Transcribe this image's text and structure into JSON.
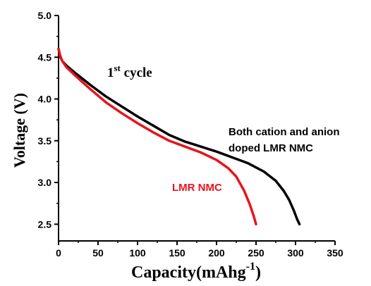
{
  "chart_data": {
    "type": "line",
    "title": "",
    "xlabel": "Capacity(mAhg",
    "xlabel_sup": "-1",
    "xlabel_close": ")",
    "ylabel": "Voltage (V)",
    "xlim": [
      0,
      350
    ],
    "ylim": [
      2.3,
      5.0
    ],
    "x_ticks": [
      0,
      50,
      100,
      150,
      200,
      250,
      300,
      350
    ],
    "y_ticks": [
      2.5,
      3.0,
      3.5,
      4.0,
      4.5,
      5.0
    ],
    "x_tick_labels": [
      "0",
      "50",
      "100",
      "150",
      "200",
      "250",
      "300",
      "350"
    ],
    "y_tick_labels": [
      "2.5",
      "3.0",
      "3.5",
      "4.0",
      "4.5",
      "5.0"
    ],
    "grid": false,
    "annotation": {
      "base": "1",
      "sup": "st",
      "rest": " cycle"
    },
    "series": [
      {
        "name": "LMR NMC",
        "color": "#e8141c",
        "x": [
          0,
          2,
          5,
          10,
          20,
          40,
          60,
          80,
          100,
          120,
          140,
          160,
          180,
          200,
          215,
          225,
          235,
          242,
          247,
          250
        ],
        "y": [
          4.6,
          4.52,
          4.45,
          4.38,
          4.29,
          4.12,
          3.96,
          3.83,
          3.71,
          3.6,
          3.5,
          3.43,
          3.36,
          3.27,
          3.17,
          3.07,
          2.9,
          2.74,
          2.6,
          2.5
        ]
      },
      {
        "name": "Both cation and anion\ndoped LMR NMC",
        "color": "#000000",
        "x": [
          0,
          2,
          5,
          10,
          20,
          40,
          60,
          80,
          100,
          120,
          140,
          160,
          180,
          200,
          220,
          240,
          260,
          275,
          285,
          292,
          298,
          302,
          305
        ],
        "y": [
          4.6,
          4.51,
          4.45,
          4.4,
          4.32,
          4.17,
          4.03,
          3.91,
          3.79,
          3.68,
          3.57,
          3.49,
          3.43,
          3.37,
          3.3,
          3.23,
          3.13,
          3.02,
          2.9,
          2.79,
          2.66,
          2.56,
          2.5
        ]
      }
    ]
  }
}
